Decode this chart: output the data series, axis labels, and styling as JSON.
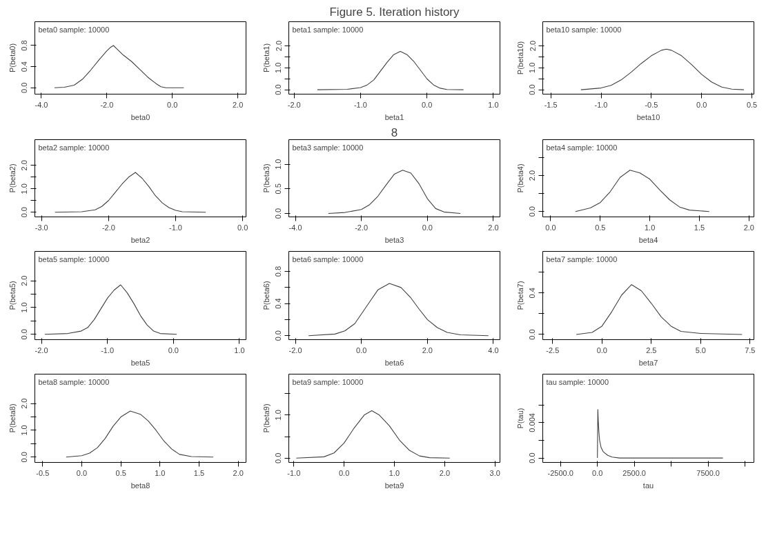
{
  "chart_data": [
    {
      "type": "line",
      "title": "beta0 sample: 10000",
      "xlabel": "beta0",
      "ylabel": "P(beta0)",
      "color": "#404040",
      "xlim": [
        -4.2,
        2.25
      ],
      "xticks": [
        {
          "value": -4,
          "label": "-4.0"
        },
        {
          "value": -2,
          "label": "-2.0"
        },
        {
          "value": 0,
          "label": "0.0"
        },
        {
          "value": 2,
          "label": "2.0"
        }
      ],
      "ylim": [
        -0.12,
        1.25
      ],
      "yticks": [
        {
          "value": 0,
          "label": "0.0"
        },
        {
          "value": 0.4,
          "label": "0.4"
        },
        {
          "value": 0.8,
          "label": "0.8"
        }
      ],
      "x": [
        -3.6,
        -3.3,
        -3.0,
        -2.75,
        -2.5,
        -2.25,
        -2.0,
        -1.9,
        -1.8,
        -1.7,
        -1.5,
        -1.25,
        -1.0,
        -0.75,
        -0.5,
        -0.35,
        -0.2,
        0.35
      ],
      "values": [
        0.0,
        0.01,
        0.05,
        0.16,
        0.33,
        0.52,
        0.7,
        0.76,
        0.8,
        0.74,
        0.62,
        0.5,
        0.35,
        0.2,
        0.08,
        0.02,
        0.0,
        0.0
      ]
    },
    {
      "type": "line",
      "title": "beta1 sample: 10000",
      "xlabel": "beta1",
      "ylabel": "P(beta1)",
      "color": "#404040",
      "annotations": [
        "Figure 5. Iteration history"
      ],
      "xlim": [
        -2.08,
        1.1
      ],
      "xticks": [
        {
          "value": -2,
          "label": "-2.0"
        },
        {
          "value": -1,
          "label": "-1.0"
        },
        {
          "value": 0,
          "label": "0.0"
        },
        {
          "value": 1,
          "label": "1.0"
        }
      ],
      "ylim": [
        -0.2,
        3.1
      ],
      "yticks": [
        {
          "value": 0,
          "label": "0.0"
        },
        {
          "value": 0.5,
          "label": null
        },
        {
          "value": 1,
          "label": "1.0"
        },
        {
          "value": 1.5,
          "label": null
        },
        {
          "value": 2,
          "label": "2.0"
        }
      ],
      "x": [
        -1.65,
        -1.2,
        -1.0,
        -0.9,
        -0.8,
        -0.7,
        -0.6,
        -0.5,
        -0.4,
        -0.3,
        -0.2,
        -0.1,
        0.0,
        0.1,
        0.2,
        0.3,
        0.55
      ],
      "values": [
        0.0,
        0.02,
        0.1,
        0.22,
        0.45,
        0.85,
        1.25,
        1.6,
        1.75,
        1.6,
        1.3,
        0.9,
        0.5,
        0.22,
        0.07,
        0.01,
        0.0
      ]
    },
    {
      "type": "line",
      "title": "beta10 sample: 10000",
      "xlabel": "beta10",
      "ylabel": "P(beta10)",
      "color": "#404040",
      "xlim": [
        -1.58,
        0.52
      ],
      "xticks": [
        {
          "value": -1.5,
          "label": "-1.5"
        },
        {
          "value": -1,
          "label": "-1.0"
        },
        {
          "value": -0.5,
          "label": "-0.5"
        },
        {
          "value": 0,
          "label": "0.0"
        },
        {
          "value": 0.5,
          "label": "0.5"
        }
      ],
      "ylim": [
        -0.2,
        3.1
      ],
      "yticks": [
        {
          "value": 0,
          "label": "0.0"
        },
        {
          "value": 0.5,
          "label": null
        },
        {
          "value": 1,
          "label": "1.0"
        },
        {
          "value": 1.5,
          "label": null
        },
        {
          "value": 2,
          "label": "2.0"
        }
      ],
      "x": [
        -1.2,
        -1.0,
        -0.9,
        -0.8,
        -0.7,
        -0.6,
        -0.5,
        -0.4,
        -0.35,
        -0.3,
        -0.2,
        -0.1,
        0.0,
        0.1,
        0.2,
        0.3,
        0.42
      ],
      "values": [
        0.0,
        0.08,
        0.2,
        0.45,
        0.8,
        1.2,
        1.55,
        1.8,
        1.85,
        1.8,
        1.55,
        1.15,
        0.7,
        0.35,
        0.12,
        0.03,
        0.0
      ]
    },
    {
      "type": "line",
      "title": "beta2 sample: 10000",
      "xlabel": "beta2",
      "ylabel": "P(beta2)",
      "color": "#404040",
      "xlim": [
        -3.1,
        0.05
      ],
      "xticks": [
        {
          "value": -3,
          "label": "-3.0"
        },
        {
          "value": -2,
          "label": "-2.0"
        },
        {
          "value": -1,
          "label": "-1.0"
        },
        {
          "value": 0,
          "label": "0.0"
        }
      ],
      "ylim": [
        -0.2,
        3.1
      ],
      "yticks": [
        {
          "value": 0,
          "label": "0.0"
        },
        {
          "value": 0.5,
          "label": null
        },
        {
          "value": 1,
          "label": "1.0"
        },
        {
          "value": 1.5,
          "label": null
        },
        {
          "value": 2,
          "label": "2.0"
        }
      ],
      "x": [
        -2.8,
        -2.4,
        -2.2,
        -2.1,
        -2.0,
        -1.9,
        -1.8,
        -1.7,
        -1.6,
        -1.5,
        -1.4,
        -1.3,
        -1.2,
        -1.1,
        -1.0,
        -0.9,
        -0.55
      ],
      "values": [
        0.0,
        0.02,
        0.1,
        0.25,
        0.5,
        0.85,
        1.2,
        1.5,
        1.7,
        1.45,
        1.1,
        0.7,
        0.4,
        0.2,
        0.08,
        0.02,
        0.0
      ]
    },
    {
      "type": "line",
      "title": "beta3 sample: 10000",
      "xlabel": "beta3",
      "ylabel": "P(beta3)",
      "color": "#404040",
      "annotations": [
        "8"
      ],
      "xlim": [
        -4.2,
        2.2
      ],
      "xticks": [
        {
          "value": -4,
          "label": "-4.0"
        },
        {
          "value": -2,
          "label": "-2.0"
        },
        {
          "value": 0,
          "label": "0.0"
        },
        {
          "value": 2,
          "label": "2.0"
        }
      ],
      "ylim": [
        -0.07,
        1.5
      ],
      "yticks": [
        {
          "value": 0,
          "label": "0.0"
        },
        {
          "value": 0.5,
          "label": "0.5"
        },
        {
          "value": 1,
          "label": "1.0"
        }
      ],
      "x": [
        -3.0,
        -2.5,
        -2.0,
        -1.75,
        -1.5,
        -1.25,
        -1.0,
        -0.75,
        -0.5,
        -0.25,
        0.0,
        0.25,
        0.5,
        1.0
      ],
      "values": [
        0.0,
        0.02,
        0.08,
        0.18,
        0.35,
        0.58,
        0.8,
        0.88,
        0.82,
        0.6,
        0.3,
        0.1,
        0.03,
        0.0
      ]
    },
    {
      "type": "line",
      "title": "beta4 sample: 10000",
      "xlabel": "beta4",
      "ylabel": "P(beta4)",
      "color": "#404040",
      "xlim": [
        -0.08,
        2.05
      ],
      "xticks": [
        {
          "value": 0,
          "label": "0.0"
        },
        {
          "value": 0.5,
          "label": "0.5"
        },
        {
          "value": 1,
          "label": "1.0"
        },
        {
          "value": 1.5,
          "label": "1.5"
        },
        {
          "value": 2,
          "label": "2.0"
        }
      ],
      "ylim": [
        -0.3,
        4.0
      ],
      "yticks": [
        {
          "value": 0,
          "label": "0.0"
        },
        {
          "value": 1,
          "label": null
        },
        {
          "value": 2,
          "label": "2.0"
        },
        {
          "value": 3,
          "label": null
        }
      ],
      "x": [
        0.25,
        0.4,
        0.5,
        0.6,
        0.7,
        0.8,
        0.9,
        1.0,
        1.1,
        1.2,
        1.3,
        1.4,
        1.6
      ],
      "values": [
        0.0,
        0.2,
        0.5,
        1.1,
        1.9,
        2.3,
        2.15,
        1.8,
        1.2,
        0.65,
        0.25,
        0.08,
        0.0
      ]
    },
    {
      "type": "line",
      "title": "beta5 sample: 10000",
      "xlabel": "beta5",
      "ylabel": "P(beta5)",
      "color": "#404040",
      "xlim": [
        -2.1,
        1.1
      ],
      "xticks": [
        {
          "value": -2,
          "label": "-2.0"
        },
        {
          "value": -1,
          "label": "-1.0"
        },
        {
          "value": 0,
          "label": "0.0"
        },
        {
          "value": 1,
          "label": "1.0"
        }
      ],
      "ylim": [
        -0.2,
        3.1
      ],
      "yticks": [
        {
          "value": 0,
          "label": "0.0"
        },
        {
          "value": 0.5,
          "label": null
        },
        {
          "value": 1,
          "label": "1.0"
        },
        {
          "value": 1.5,
          "label": null
        },
        {
          "value": 2,
          "label": "2.0"
        }
      ],
      "x": [
        -1.95,
        -1.6,
        -1.4,
        -1.3,
        -1.2,
        -1.1,
        -1.0,
        -0.9,
        -0.8,
        -0.7,
        -0.6,
        -0.5,
        -0.4,
        -0.3,
        -0.2,
        0.05
      ],
      "values": [
        0.0,
        0.03,
        0.12,
        0.25,
        0.55,
        0.95,
        1.35,
        1.65,
        1.85,
        1.55,
        1.15,
        0.7,
        0.35,
        0.12,
        0.03,
        0.0
      ]
    },
    {
      "type": "line",
      "title": "beta6 sample: 10000",
      "xlabel": "beta6",
      "ylabel": "P(beta6)",
      "color": "#404040",
      "xlim": [
        -2.2,
        4.2
      ],
      "xticks": [
        {
          "value": -2,
          "label": "-2.0"
        },
        {
          "value": 0,
          "label": "0.0"
        },
        {
          "value": 2,
          "label": "2.0"
        },
        {
          "value": 4,
          "label": "4.0"
        }
      ],
      "ylim": [
        -0.05,
        1.05
      ],
      "yticks": [
        {
          "value": 0,
          "label": "0.0"
        },
        {
          "value": 0.2,
          "label": null
        },
        {
          "value": 0.4,
          "label": "0.4"
        },
        {
          "value": 0.6,
          "label": null
        },
        {
          "value": 0.8,
          "label": "0.8"
        }
      ],
      "x": [
        -1.6,
        -0.8,
        -0.5,
        -0.2,
        0.0,
        0.25,
        0.5,
        0.85,
        1.2,
        1.5,
        1.75,
        2.0,
        2.3,
        2.6,
        3.0,
        3.85
      ],
      "values": [
        0.0,
        0.02,
        0.06,
        0.15,
        0.27,
        0.42,
        0.57,
        0.65,
        0.6,
        0.47,
        0.33,
        0.2,
        0.1,
        0.04,
        0.01,
        0.0
      ]
    },
    {
      "type": "line",
      "title": "beta7 sample: 10000",
      "xlabel": "beta7",
      "ylabel": "P(beta7)",
      "color": "#404040",
      "xlim": [
        -3.0,
        7.7
      ],
      "xticks": [
        {
          "value": -2.5,
          "label": "-2.5"
        },
        {
          "value": 0,
          "label": "0.0"
        },
        {
          "value": 2.5,
          "label": "2.5"
        },
        {
          "value": 5,
          "label": "5.0"
        },
        {
          "value": 7.5,
          "label": "7.5"
        }
      ],
      "ylim": [
        -0.05,
        0.8
      ],
      "yticks": [
        {
          "value": 0,
          "label": "0.0"
        },
        {
          "value": 0.2,
          "label": null
        },
        {
          "value": 0.4,
          "label": "0.4"
        },
        {
          "value": 0.6,
          "label": null
        }
      ],
      "x": [
        -1.3,
        -0.5,
        0.0,
        0.5,
        1.0,
        1.5,
        2.0,
        2.5,
        3.0,
        3.5,
        4.0,
        5.0,
        7.1
      ],
      "values": [
        0.0,
        0.02,
        0.08,
        0.22,
        0.38,
        0.48,
        0.42,
        0.3,
        0.17,
        0.08,
        0.03,
        0.01,
        0.0
      ]
    },
    {
      "type": "line",
      "title": "beta8 sample: 10000",
      "xlabel": "beta8",
      "ylabel": "P(beta8)",
      "color": "#404040",
      "xlim": [
        -0.6,
        2.1
      ],
      "xticks": [
        {
          "value": -0.5,
          "label": "-0.5"
        },
        {
          "value": 0,
          "label": "0.0"
        },
        {
          "value": 0.5,
          "label": "0.5"
        },
        {
          "value": 1,
          "label": "1.0"
        },
        {
          "value": 1.5,
          "label": "1.5"
        },
        {
          "value": 2,
          "label": "2.0"
        }
      ],
      "ylim": [
        -0.2,
        3.1
      ],
      "yticks": [
        {
          "value": 0,
          "label": "0.0"
        },
        {
          "value": 0.5,
          "label": null
        },
        {
          "value": 1,
          "label": "1.0"
        },
        {
          "value": 1.5,
          "label": null
        },
        {
          "value": 2,
          "label": "2.0"
        }
      ],
      "x": [
        -0.2,
        0.0,
        0.1,
        0.2,
        0.3,
        0.4,
        0.5,
        0.62,
        0.75,
        0.85,
        0.95,
        1.05,
        1.15,
        1.25,
        1.4,
        1.68
      ],
      "values": [
        0.0,
        0.05,
        0.15,
        0.35,
        0.7,
        1.15,
        1.5,
        1.72,
        1.6,
        1.35,
        1.0,
        0.6,
        0.3,
        0.1,
        0.02,
        0.0
      ]
    },
    {
      "type": "line",
      "title": "beta9 sample: 10000",
      "xlabel": "beta9",
      "ylabel": "P(beta9)",
      "color": "#404040",
      "xlim": [
        -1.1,
        3.1
      ],
      "xticks": [
        {
          "value": -1,
          "label": "-1.0"
        },
        {
          "value": 0,
          "label": "0.0"
        },
        {
          "value": 1,
          "label": "1.0"
        },
        {
          "value": 2,
          "label": "2.0"
        },
        {
          "value": 3,
          "label": "3.0"
        }
      ],
      "ylim": [
        -0.1,
        1.95
      ],
      "yticks": [
        {
          "value": 0,
          "label": "0.0"
        },
        {
          "value": 0.5,
          "label": null
        },
        {
          "value": 1,
          "label": "1.0"
        },
        {
          "value": 1.5,
          "label": null
        }
      ],
      "x": [
        -0.95,
        -0.4,
        -0.2,
        0.0,
        0.2,
        0.4,
        0.55,
        0.7,
        0.9,
        1.1,
        1.3,
        1.5,
        1.7,
        2.1
      ],
      "values": [
        0.0,
        0.03,
        0.12,
        0.35,
        0.7,
        1.0,
        1.1,
        1.0,
        0.75,
        0.42,
        0.18,
        0.05,
        0.01,
        0.0
      ]
    },
    {
      "type": "line",
      "title": "tau sample: 10000",
      "xlabel": "tau",
      "ylabel": "P(tau)",
      "color": "#404040",
      "xlim": [
        -3700,
        10600
      ],
      "xticks": [
        {
          "value": -2500,
          "label": "-2500.0"
        },
        {
          "value": 0,
          "label": "0.0"
        },
        {
          "value": 2500,
          "label": "2500.0"
        },
        {
          "value": 5000,
          "label": null
        },
        {
          "value": 7500,
          "label": "7500.0"
        },
        {
          "value": 10000,
          "label": null
        }
      ],
      "ylim": [
        -0.0005,
        0.0095
      ],
      "yticks": [
        {
          "value": 0,
          "label": "0.0"
        },
        {
          "value": 0.002,
          "label": null
        },
        {
          "value": 0.004,
          "label": "0.004"
        },
        {
          "value": 0.006,
          "label": null
        }
      ],
      "x": [
        0,
        30,
        60,
        100,
        150,
        250,
        400,
        700,
        1000,
        1500,
        3000,
        8500
      ],
      "values": [
        0.0,
        0.0055,
        0.0042,
        0.003,
        0.002,
        0.0012,
        0.0007,
        0.0003,
        0.0001,
        0.0,
        0.0,
        0.0
      ]
    }
  ]
}
